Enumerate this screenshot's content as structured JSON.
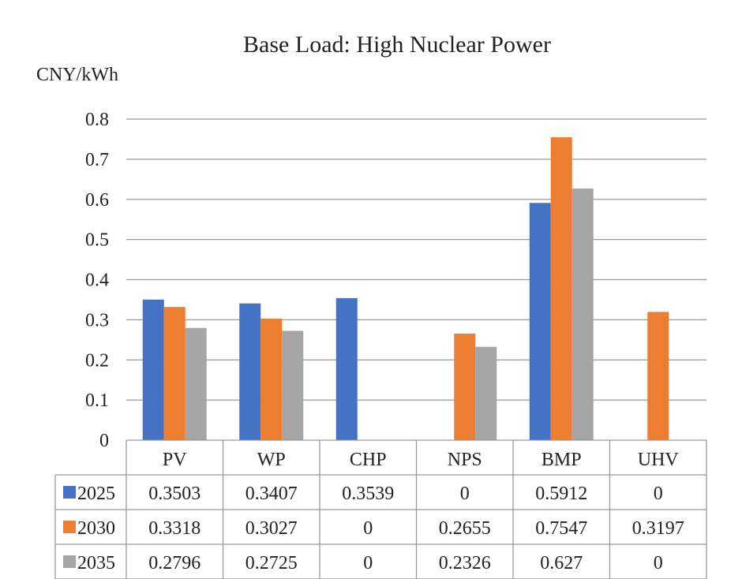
{
  "chart_data": {
    "type": "bar",
    "title": "Base Load: High Nuclear Power",
    "ylabel": "CNY/kWh",
    "xlabel": "",
    "categories": [
      "PV",
      "WP",
      "CHP",
      "NPS",
      "BMP",
      "UHV"
    ],
    "ylim": [
      0,
      0.8
    ],
    "yticks": [
      "0",
      "0.1",
      "0.2",
      "0.3",
      "0.4",
      "0.5",
      "0.6",
      "0.7",
      "0.8"
    ],
    "grid": true,
    "legend": "data-table",
    "series": [
      {
        "name": "2025",
        "color": "#4472C4",
        "values": [
          0.3503,
          0.3407,
          0.3539,
          0,
          0.5912,
          0
        ],
        "labels": [
          "0.3503",
          "0.3407",
          "0.3539",
          "0",
          "0.5912",
          "0"
        ]
      },
      {
        "name": "2030",
        "color": "#ED7D31",
        "values": [
          0.3318,
          0.3027,
          0,
          0.2655,
          0.7547,
          0.3197
        ],
        "labels": [
          "0.3318",
          "0.3027",
          "0",
          "0.2655",
          "0.7547",
          "0.3197"
        ]
      },
      {
        "name": "2035",
        "color": "#A5A5A5",
        "values": [
          0.2796,
          0.2725,
          0,
          0.2326,
          0.627,
          0
        ],
        "labels": [
          "0.2796",
          "0.2725",
          "0",
          "0.2326",
          "0.627",
          "0"
        ]
      }
    ]
  }
}
